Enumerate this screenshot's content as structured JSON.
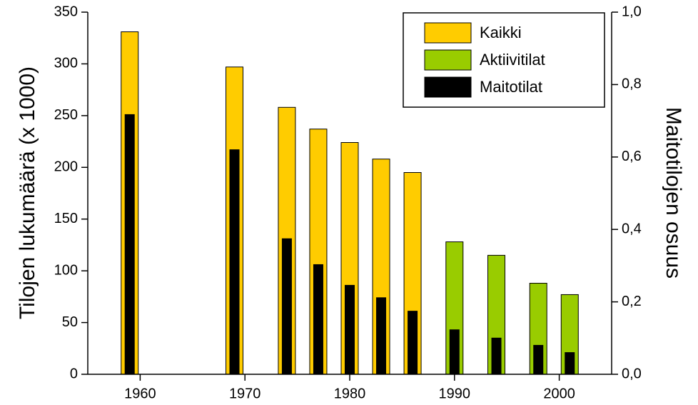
{
  "chart_data": {
    "type": "bar",
    "y_label": "Tilojen lukumäärä (x 1000)",
    "y2_label": "Maitotilojen osuus",
    "x": [
      1959,
      1969,
      1974,
      1977,
      1980,
      1983,
      1986,
      1990,
      1994,
      1998,
      2001
    ],
    "series": [
      {
        "name": "Kaikki",
        "color": "#ffcc00",
        "values": [
          331,
          297,
          258,
          237,
          224,
          208,
          195,
          null,
          null,
          null,
          null
        ]
      },
      {
        "name": "Aktiivitilat",
        "color": "#99cc00",
        "values": [
          null,
          null,
          null,
          null,
          null,
          null,
          null,
          128,
          115,
          88,
          77
        ]
      },
      {
        "name": "Maitotilat",
        "color": "#000000",
        "values": [
          251,
          217,
          131,
          106,
          86,
          74,
          61,
          43,
          35,
          28,
          21
        ]
      }
    ],
    "xlim": [
      1955,
      2005
    ],
    "xticks": [
      1960,
      1970,
      1980,
      1990,
      2000
    ],
    "ylim": [
      0,
      350
    ],
    "yticks": [
      0,
      50,
      100,
      150,
      200,
      250,
      300,
      350
    ],
    "y2lim": [
      0,
      1
    ],
    "y2ticks": [
      {
        "value": 0,
        "label": "0,0"
      },
      {
        "value": 0.2,
        "label": "0,2"
      },
      {
        "value": 0.4,
        "label": "0,4"
      },
      {
        "value": 0.6,
        "label": "0,6"
      },
      {
        "value": 0.8,
        "label": "0,8"
      },
      {
        "value": 1,
        "label": "1,0"
      }
    ],
    "legend": "upper right"
  }
}
